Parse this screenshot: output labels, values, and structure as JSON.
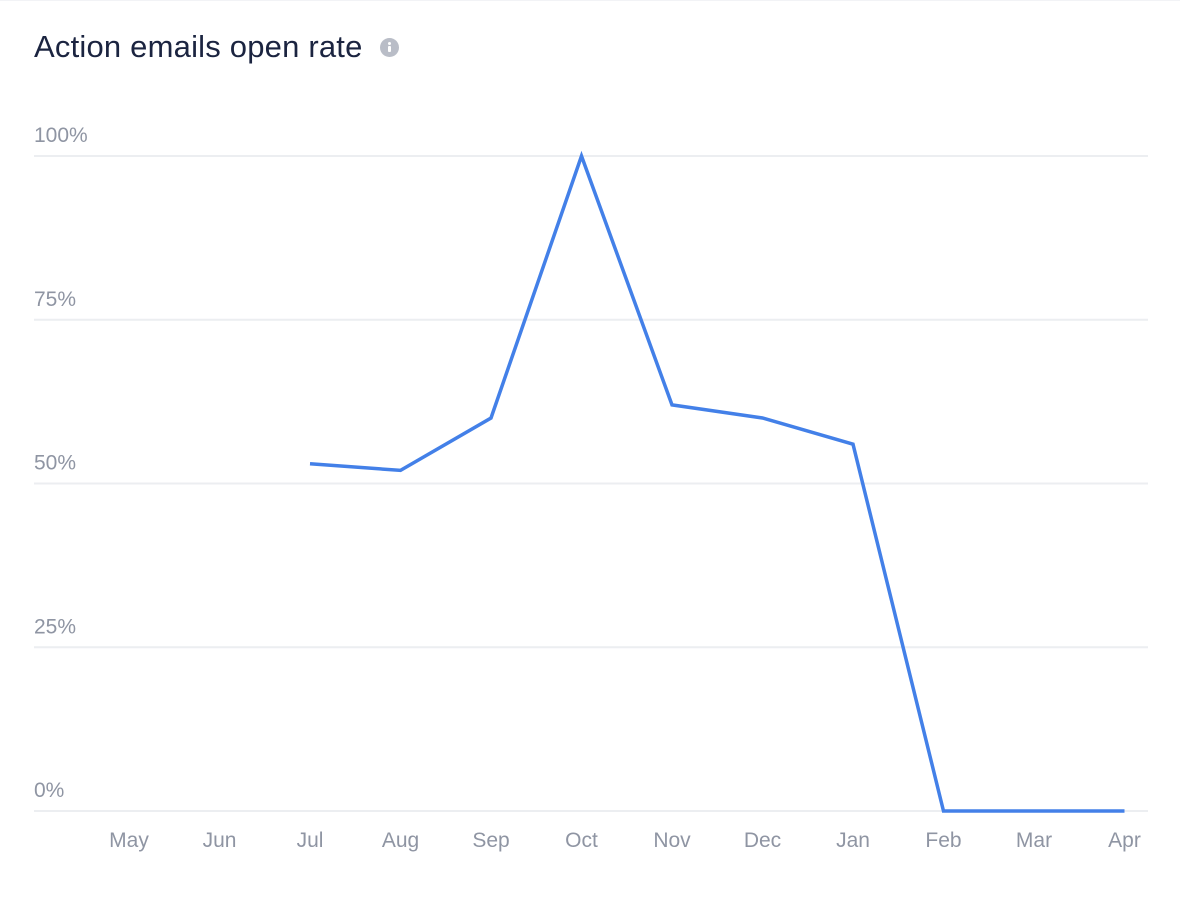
{
  "header": {
    "title": "Action emails open rate",
    "info_icon": "info-icon"
  },
  "chart_data": {
    "type": "line",
    "title": "Action emails open rate",
    "xlabel": "",
    "ylabel": "",
    "categories": [
      "May",
      "Jun",
      "Jul",
      "Aug",
      "Sep",
      "Oct",
      "Nov",
      "Dec",
      "Jan",
      "Feb",
      "Mar",
      "Apr"
    ],
    "series": [
      {
        "values": [
          null,
          null,
          53,
          52,
          60,
          100,
          62,
          60,
          56,
          0,
          0,
          0
        ],
        "color": "#4380e8"
      }
    ],
    "ylim": [
      0,
      100
    ],
    "yticks": [
      0,
      25,
      50,
      75,
      100
    ],
    "ytick_labels": [
      "0%",
      "25%",
      "50%",
      "75%",
      "100%"
    ],
    "grid": true,
    "legend": "none"
  }
}
